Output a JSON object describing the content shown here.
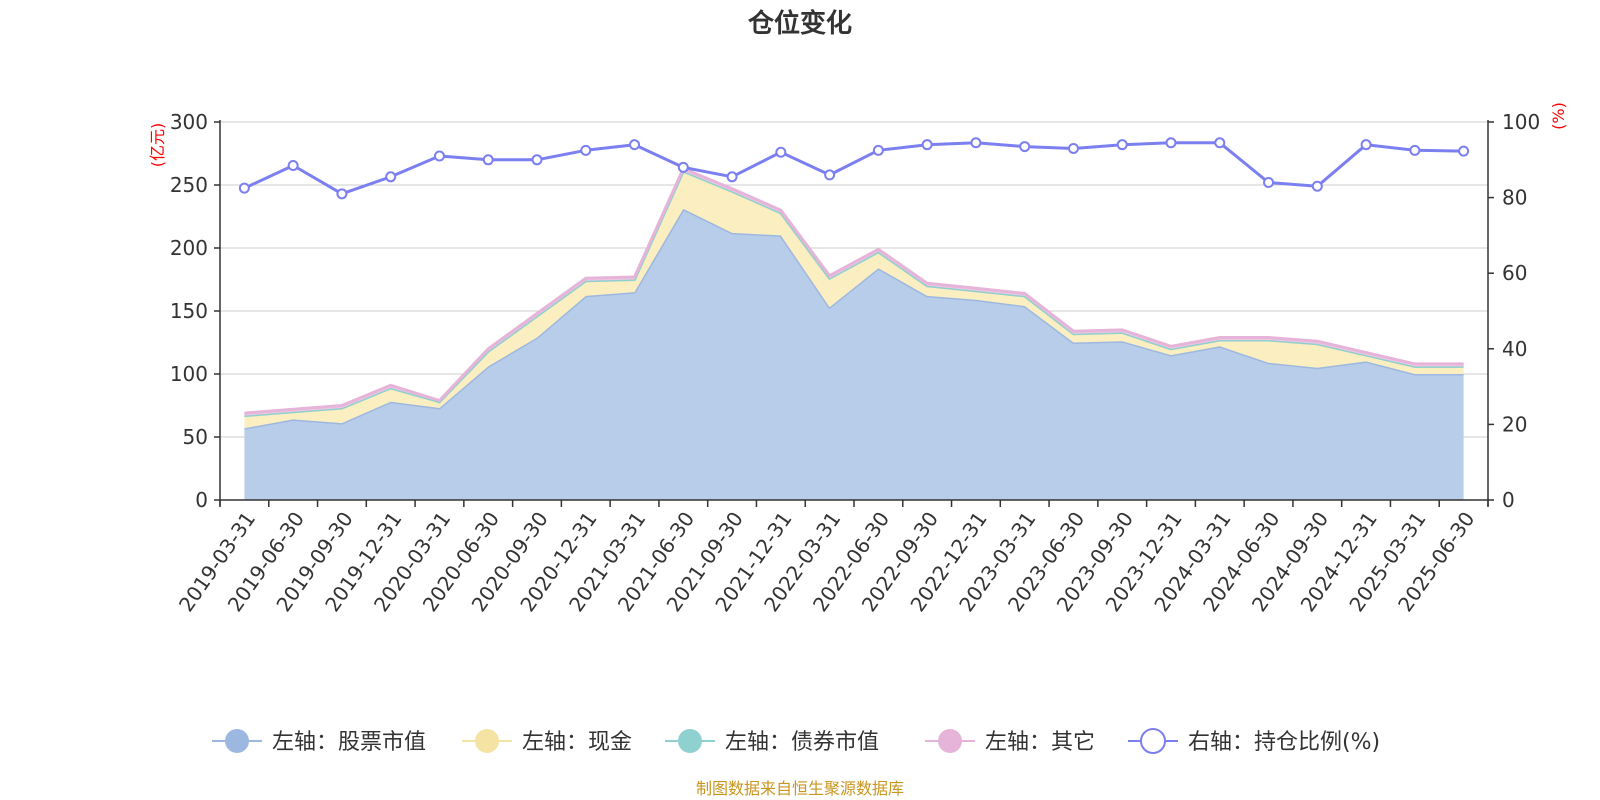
{
  "chart_data": {
    "type": "area",
    "title": "仓位变化",
    "left_axis_unit": "(亿元)",
    "right_axis_unit": "(%)",
    "ylim_left": [
      0,
      300
    ],
    "yticks_left": [
      0,
      50,
      100,
      150,
      200,
      250,
      300
    ],
    "ylim_right": [
      0,
      100
    ],
    "yticks_right": [
      0,
      20,
      40,
      60,
      80,
      100
    ],
    "grid": true,
    "legend_position": "bottom",
    "x": [
      "2019-03-31",
      "2019-06-30",
      "2019-09-30",
      "2019-12-31",
      "2020-03-31",
      "2020-06-30",
      "2020-09-30",
      "2020-12-31",
      "2021-03-31",
      "2021-06-30",
      "2021-09-30",
      "2021-12-31",
      "2022-03-31",
      "2022-06-30",
      "2022-09-30",
      "2022-12-31",
      "2023-03-31",
      "2023-06-30",
      "2023-09-30",
      "2023-12-31",
      "2024-03-31",
      "2024-06-30",
      "2024-09-30",
      "2024-12-31",
      "2025-03-31",
      "2025-06-30"
    ],
    "series": [
      {
        "name": "左轴：股票市值",
        "axis": "left",
        "kind": "area",
        "stack": true,
        "color": "#9db8e0",
        "fill": "#b8cdea",
        "values": [
          57,
          64,
          61,
          78,
          73,
          106,
          129,
          162,
          165,
          231,
          212,
          210,
          153,
          184,
          162,
          159,
          154,
          125,
          126,
          115,
          122,
          109,
          105,
          110,
          100,
          100
        ]
      },
      {
        "name": "左轴：现金",
        "axis": "left",
        "kind": "area",
        "stack": true,
        "color": "#f5e3a3",
        "fill": "#fbeec0",
        "values": [
          10,
          6,
          12,
          11,
          5,
          12,
          17,
          12,
          10,
          30,
          33,
          18,
          23,
          13,
          8,
          7,
          8,
          7,
          7,
          5,
          5,
          18,
          19,
          5,
          6,
          6
        ]
      },
      {
        "name": "左轴：债券市值",
        "axis": "left",
        "kind": "area",
        "stack": true,
        "color": "#8fd0d0",
        "fill": "#a8dcdc",
        "values": [
          0,
          0,
          0,
          0,
          0,
          0,
          0,
          0,
          0,
          0,
          0,
          0,
          0,
          0,
          0,
          0,
          0,
          0,
          0,
          0,
          0,
          0,
          0,
          0,
          0,
          0
        ]
      },
      {
        "name": "左轴：其它",
        "axis": "left",
        "kind": "area",
        "stack": true,
        "color": "#e6b4d8",
        "fill": "#efc7e3",
        "values": [
          2,
          2,
          2,
          2,
          1,
          2,
          2,
          2,
          2,
          2,
          2,
          2,
          2,
          2,
          2,
          2,
          2,
          2,
          2,
          2,
          2,
          2,
          2,
          2,
          2,
          2
        ]
      },
      {
        "name": "右轴：持仓比例(%)",
        "axis": "right",
        "kind": "line",
        "color": "#7b7ff0",
        "values": [
          82.5,
          88.5,
          81,
          85.5,
          91,
          90,
          90,
          92.5,
          94,
          88,
          85.5,
          92,
          86,
          92.5,
          94,
          94.5,
          93.5,
          93,
          94,
          94.5,
          94.5,
          84,
          83,
          94,
          92.5,
          92.3
        ]
      }
    ]
  },
  "source_note": "制图数据来自恒生聚源数据库"
}
